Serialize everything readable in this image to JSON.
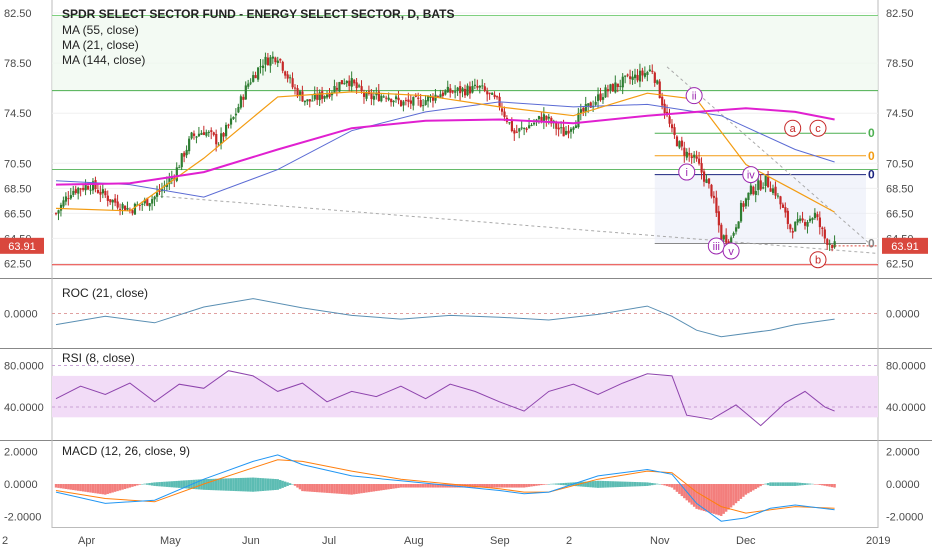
{
  "chart_data": {
    "type": "candlestick",
    "title": "SPDR SELECT SECTOR FUND - ENERGY SELECT SECTOR, D, BATS",
    "last_price": "63.91",
    "colors": {
      "up": "#2e7d32",
      "down": "#c62828",
      "ma55": "#5b6bd4",
      "ma21": "#f39c12",
      "ma144": "#e020d0",
      "roc": "#5a8fb3",
      "rsi": "#8e44ad",
      "macd": "#2196f3",
      "signal": "#ff7f0e",
      "hist_pos": "#26a69a",
      "hist_neg": "#ef5350"
    },
    "x_labels": [
      "2",
      "Apr",
      "May",
      "Jun",
      "Jul",
      "Aug",
      "Sep",
      "2",
      "Nov",
      "Dec",
      "2019"
    ],
    "main": {
      "ylim": [
        61.5,
        83.3
      ],
      "ticks": [
        "82.50",
        "78.50",
        "74.50",
        "70.50",
        "68.50",
        "66.50",
        "64.50",
        "62.50"
      ],
      "legend": [
        "MA (55, close)",
        "MA (21, close)",
        "MA (144, close)"
      ],
      "horizontal_levels": [
        82.3,
        76.3,
        70.0,
        62.4
      ],
      "fib_labels": [
        "0",
        "0",
        "0",
        "0"
      ],
      "wave_labels": [
        "ii",
        "a",
        "c",
        "i",
        "iv",
        "iii",
        "v",
        "b"
      ]
    },
    "close_series": [
      [
        0,
        66.5
      ],
      [
        6,
        68.3
      ],
      [
        14,
        68.8
      ],
      [
        22,
        67.6
      ],
      [
        30,
        66.8
      ],
      [
        40,
        67.8
      ],
      [
        48,
        69.6
      ],
      [
        55,
        72.6
      ],
      [
        60,
        73.1
      ],
      [
        66,
        72.2
      ],
      [
        72,
        74.1
      ],
      [
        78,
        76.9
      ],
      [
        84,
        78.6
      ],
      [
        90,
        79.1
      ],
      [
        96,
        76.6
      ],
      [
        102,
        75.4
      ],
      [
        110,
        76.1
      ],
      [
        118,
        77.3
      ],
      [
        126,
        75.7
      ],
      [
        134,
        76.0
      ],
      [
        140,
        75.3
      ],
      [
        148,
        75.4
      ],
      [
        156,
        76.1
      ],
      [
        164,
        76.3
      ],
      [
        172,
        76.5
      ],
      [
        180,
        75.2
      ],
      [
        186,
        72.9
      ],
      [
        190,
        73.3
      ],
      [
        198,
        74.2
      ],
      [
        206,
        72.9
      ],
      [
        214,
        74.6
      ],
      [
        222,
        76.1
      ],
      [
        230,
        77.0
      ],
      [
        238,
        77.6
      ],
      [
        242,
        78.0
      ],
      [
        246,
        75.4
      ],
      [
        250,
        72.9
      ],
      [
        254,
        71.6
      ],
      [
        260,
        70.6
      ],
      [
        266,
        68.2
      ],
      [
        270,
        64.6
      ],
      [
        274,
        64.5
      ],
      [
        278,
        66.9
      ],
      [
        282,
        68.3
      ],
      [
        288,
        69.1
      ],
      [
        292,
        68.2
      ],
      [
        298,
        65.3
      ],
      [
        304,
        65.9
      ],
      [
        308,
        66.4
      ],
      [
        312,
        64.5
      ],
      [
        316,
        63.91
      ]
    ],
    "ma55_series": [
      [
        0,
        69.1
      ],
      [
        30,
        68.8
      ],
      [
        60,
        67.8
      ],
      [
        90,
        70.0
      ],
      [
        120,
        73.1
      ],
      [
        150,
        74.6
      ],
      [
        180,
        75.4
      ],
      [
        210,
        75.0
      ],
      [
        240,
        75.2
      ],
      [
        270,
        74.3
      ],
      [
        300,
        71.6
      ],
      [
        316,
        70.6
      ]
    ],
    "ma21_series": [
      [
        0,
        66.9
      ],
      [
        30,
        66.7
      ],
      [
        60,
        70.9
      ],
      [
        90,
        75.8
      ],
      [
        120,
        76.2
      ],
      [
        150,
        75.9
      ],
      [
        180,
        75.0
      ],
      [
        210,
        74.3
      ],
      [
        240,
        76.1
      ],
      [
        260,
        75.6
      ],
      [
        280,
        70.4
      ],
      [
        300,
        68.3
      ],
      [
        316,
        66.6
      ]
    ],
    "ma144_series": [
      [
        0,
        68.8
      ],
      [
        30,
        68.9
      ],
      [
        60,
        69.8
      ],
      [
        90,
        71.6
      ],
      [
        120,
        73.3
      ],
      [
        150,
        73.9
      ],
      [
        180,
        74.0
      ],
      [
        210,
        73.7
      ],
      [
        240,
        74.3
      ],
      [
        260,
        74.6
      ],
      [
        280,
        74.9
      ],
      [
        300,
        74.6
      ],
      [
        316,
        74.0
      ]
    ],
    "roc": {
      "ticks": [
        "0.0000"
      ],
      "series": [
        [
          0,
          -12
        ],
        [
          20,
          -3
        ],
        [
          40,
          -10
        ],
        [
          60,
          7
        ],
        [
          80,
          16
        ],
        [
          100,
          6
        ],
        [
          120,
          -2
        ],
        [
          140,
          -6
        ],
        [
          160,
          -2
        ],
        [
          180,
          -4
        ],
        [
          200,
          -7
        ],
        [
          220,
          -1
        ],
        [
          240,
          8
        ],
        [
          250,
          -3
        ],
        [
          260,
          -18
        ],
        [
          270,
          -25
        ],
        [
          290,
          -18
        ],
        [
          300,
          -12
        ],
        [
          316,
          -6
        ]
      ]
    },
    "rsi": {
      "ticks": [
        "80.0000",
        "40.0000"
      ],
      "ylim": [
        10,
        95
      ],
      "band": [
        30,
        70
      ],
      "series": [
        [
          0,
          48
        ],
        [
          10,
          60
        ],
        [
          20,
          52
        ],
        [
          30,
          63
        ],
        [
          40,
          45
        ],
        [
          50,
          62
        ],
        [
          60,
          58
        ],
        [
          70,
          75
        ],
        [
          80,
          70
        ],
        [
          90,
          55
        ],
        [
          100,
          63
        ],
        [
          110,
          45
        ],
        [
          120,
          55
        ],
        [
          130,
          50
        ],
        [
          140,
          60
        ],
        [
          150,
          48
        ],
        [
          160,
          62
        ],
        [
          170,
          55
        ],
        [
          180,
          45
        ],
        [
          190,
          36
        ],
        [
          200,
          55
        ],
        [
          210,
          62
        ],
        [
          220,
          52
        ],
        [
          230,
          63
        ],
        [
          240,
          72
        ],
        [
          250,
          70
        ],
        [
          256,
          32
        ],
        [
          266,
          28
        ],
        [
          276,
          42
        ],
        [
          286,
          22
        ],
        [
          296,
          44
        ],
        [
          304,
          55
        ],
        [
          312,
          40
        ],
        [
          316,
          36
        ]
      ]
    },
    "macd": {
      "ticks": [
        "2.0000",
        "0.0000",
        "-2.0000"
      ],
      "ylim": [
        -2.6,
        2.6
      ],
      "macd_series": [
        [
          0,
          -0.5
        ],
        [
          20,
          -1.2
        ],
        [
          40,
          -1.0
        ],
        [
          60,
          0.3
        ],
        [
          80,
          1.4
        ],
        [
          90,
          1.8
        ],
        [
          100,
          1.2
        ],
        [
          120,
          0.5
        ],
        [
          140,
          0.2
        ],
        [
          160,
          -0.1
        ],
        [
          180,
          -0.4
        ],
        [
          190,
          -0.6
        ],
        [
          200,
          -0.5
        ],
        [
          220,
          0.5
        ],
        [
          240,
          0.9
        ],
        [
          250,
          0.6
        ],
        [
          260,
          -1.2
        ],
        [
          270,
          -2.3
        ],
        [
          280,
          -2.1
        ],
        [
          290,
          -1.5
        ],
        [
          300,
          -1.3
        ],
        [
          316,
          -1.6
        ]
      ],
      "signal_series": [
        [
          0,
          -0.4
        ],
        [
          20,
          -0.9
        ],
        [
          40,
          -1.1
        ],
        [
          60,
          0.0
        ],
        [
          80,
          1.0
        ],
        [
          90,
          1.5
        ],
        [
          100,
          1.4
        ],
        [
          120,
          0.8
        ],
        [
          140,
          0.3
        ],
        [
          160,
          0.0
        ],
        [
          180,
          -0.3
        ],
        [
          190,
          -0.5
        ],
        [
          200,
          -0.5
        ],
        [
          220,
          0.3
        ],
        [
          240,
          0.8
        ],
        [
          250,
          0.7
        ],
        [
          260,
          -0.5
        ],
        [
          270,
          -1.4
        ],
        [
          280,
          -1.8
        ],
        [
          290,
          -1.6
        ],
        [
          300,
          -1.4
        ],
        [
          316,
          -1.5
        ]
      ]
    }
  }
}
